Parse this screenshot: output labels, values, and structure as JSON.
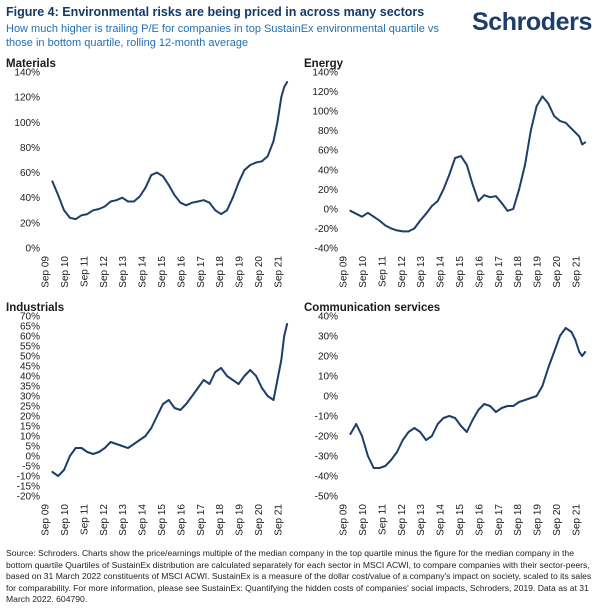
{
  "header": {
    "title": "Figure 4: Environmental risks are being priced in across many sectors",
    "subtitle": "How much higher is trailing P/E for companies in top SustainEx environmental quartile vs those in bottom quartile, rolling 12-month average",
    "logo": "Schroders"
  },
  "footnote": "Source: Schroders. Charts show the price/earnings multiple of the median company in the top quartile minus the figure for the median company in the bottom quartile Quartiles of SustainEx distribution are calculated separately for each sector in MSCI ACWI, to compare companies with their sector-peers, based on 31 March 2022 constituents of MSCI ACWI. SustainEx is a measure of the dollar cost/value of a company's impact on society, scaled to its sales for comparability. For more information, please see SustainEx: Quantifying the hidden costs of companies' social impacts, Schroders, 2019. Data as at 31 March 2022. 604790.",
  "colors": {
    "line": "#1e3e6a",
    "title": "#133a64",
    "subtitle": "#1f6fb5"
  },
  "chart_data": [
    {
      "type": "line",
      "title": "Materials",
      "x_tick_labels": [
        "Sep 09",
        "Sep 10",
        "Sep 11",
        "Sep 12",
        "Sep 13",
        "Sep 14",
        "Sep 15",
        "Sep 16",
        "Sep 17",
        "Sep 18",
        "Sep 19",
        "Sep 20",
        "Sep 21"
      ],
      "x_range": [
        2009.67,
        2022.25
      ],
      "y_ticks": [
        0,
        20,
        40,
        60,
        80,
        100,
        120,
        140
      ],
      "y_tick_labels": [
        "0%",
        "20%",
        "40%",
        "60%",
        "80%",
        "100%",
        "120%",
        "140%"
      ],
      "ylim": [
        0,
        140
      ],
      "x": [
        2010.0,
        2010.3,
        2010.6,
        2010.9,
        2011.2,
        2011.5,
        2011.8,
        2012.1,
        2012.4,
        2012.7,
        2013.0,
        2013.3,
        2013.6,
        2013.9,
        2014.2,
        2014.5,
        2014.8,
        2015.1,
        2015.4,
        2015.7,
        2016.0,
        2016.3,
        2016.6,
        2016.9,
        2017.2,
        2017.5,
        2017.8,
        2018.1,
        2018.4,
        2018.7,
        2019.0,
        2019.3,
        2019.6,
        2019.9,
        2020.2,
        2020.5,
        2020.8,
        2021.1,
        2021.4,
        2021.6,
        2021.8,
        2021.95,
        2022.1
      ],
      "values": [
        53,
        42,
        30,
        24,
        23,
        26,
        27,
        30,
        31,
        33,
        37,
        38,
        40,
        37,
        37,
        41,
        48,
        58,
        60,
        57,
        50,
        42,
        36,
        34,
        36,
        37,
        38,
        36,
        30,
        27,
        30,
        40,
        52,
        62,
        66,
        68,
        69,
        73,
        85,
        100,
        120,
        128,
        132
      ]
    },
    {
      "type": "line",
      "title": "Energy",
      "x_tick_labels": [
        "Sep 09",
        "Sep 10",
        "Sep 11",
        "Sep 12",
        "Sep 13",
        "Sep 14",
        "Sep 15",
        "Sep 16",
        "Sep 17",
        "Sep 18",
        "Sep 19",
        "Sep 20",
        "Sep 21"
      ],
      "x_range": [
        2009.67,
        2022.25
      ],
      "y_ticks": [
        -40,
        -20,
        0,
        20,
        40,
        60,
        80,
        100,
        120,
        140
      ],
      "y_tick_labels": [
        "-40%",
        "-20%",
        "0%",
        "20%",
        "40%",
        "60%",
        "80%",
        "100%",
        "120%",
        "140%"
      ],
      "ylim": [
        -40,
        140
      ],
      "x": [
        2010.0,
        2010.3,
        2010.6,
        2010.9,
        2011.2,
        2011.5,
        2011.8,
        2012.1,
        2012.4,
        2012.7,
        2013.0,
        2013.3,
        2013.6,
        2013.9,
        2014.2,
        2014.5,
        2014.8,
        2015.1,
        2015.4,
        2015.7,
        2016.0,
        2016.3,
        2016.6,
        2016.9,
        2017.2,
        2017.5,
        2017.8,
        2018.1,
        2018.4,
        2018.7,
        2019.0,
        2019.3,
        2019.6,
        2019.9,
        2020.2,
        2020.5,
        2020.8,
        2021.1,
        2021.4,
        2021.6,
        2021.8,
        2021.95,
        2022.1
      ],
      "values": [
        -2,
        -5,
        -8,
        -4,
        -8,
        -12,
        -17,
        -20,
        -22,
        -23,
        -23,
        -20,
        -12,
        -5,
        3,
        8,
        20,
        35,
        52,
        54,
        45,
        25,
        8,
        14,
        12,
        13,
        6,
        -2,
        0,
        20,
        45,
        80,
        105,
        115,
        108,
        95,
        90,
        88,
        82,
        78,
        74,
        66,
        68
      ]
    },
    {
      "type": "line",
      "title": "Industrials",
      "x_tick_labels": [
        "Sep 09",
        "Sep 10",
        "Sep 11",
        "Sep 12",
        "Sep 13",
        "Sep 14",
        "Sep 15",
        "Sep 16",
        "Sep 17",
        "Sep 18",
        "Sep 19",
        "Sep 20",
        "Sep 21"
      ],
      "x_range": [
        2009.67,
        2022.25
      ],
      "y_ticks": [
        -20,
        -15,
        -10,
        -5,
        0,
        5,
        10,
        15,
        20,
        25,
        30,
        35,
        40,
        45,
        50,
        55,
        60,
        65,
        70
      ],
      "y_tick_labels": [
        "-20%",
        "-15%",
        "-10%",
        "-5%",
        "0%",
        "5%",
        "10%",
        "15%",
        "20%",
        "25%",
        "30%",
        "35%",
        "40%",
        "45%",
        "50%",
        "55%",
        "60%",
        "65%",
        "70%"
      ],
      "ylim": [
        -20,
        70
      ],
      "x": [
        2010.0,
        2010.3,
        2010.6,
        2010.9,
        2011.2,
        2011.5,
        2011.8,
        2012.1,
        2012.4,
        2012.7,
        2013.0,
        2013.3,
        2013.6,
        2013.9,
        2014.2,
        2014.5,
        2014.8,
        2015.1,
        2015.4,
        2015.7,
        2016.0,
        2016.3,
        2016.6,
        2016.9,
        2017.2,
        2017.5,
        2017.8,
        2018.1,
        2018.4,
        2018.7,
        2019.0,
        2019.3,
        2019.6,
        2019.9,
        2020.2,
        2020.5,
        2020.8,
        2021.1,
        2021.4,
        2021.6,
        2021.8,
        2021.95,
        2022.1
      ],
      "values": [
        -8,
        -10,
        -7,
        0,
        4,
        4,
        2,
        1,
        2,
        4,
        7,
        6,
        5,
        4,
        6,
        8,
        10,
        14,
        20,
        26,
        28,
        24,
        23,
        26,
        30,
        34,
        38,
        36,
        42,
        44,
        40,
        38,
        36,
        40,
        43,
        40,
        34,
        30,
        28,
        38,
        48,
        60,
        66
      ]
    },
    {
      "type": "line",
      "title": "Communication services",
      "x_tick_labels": [
        "Sep 09",
        "Sep 10",
        "Sep 11",
        "Sep 12",
        "Sep 13",
        "Sep 14",
        "Sep 15",
        "Sep 16",
        "Sep 17",
        "Sep 18",
        "Sep 19",
        "Sep 20",
        "Sep 21"
      ],
      "x_range": [
        2009.67,
        2022.25
      ],
      "y_ticks": [
        -50,
        -40,
        -30,
        -20,
        -10,
        0,
        10,
        20,
        30,
        40
      ],
      "y_tick_labels": [
        "-50%",
        "-40%",
        "-30%",
        "-20%",
        "-10%",
        "0%",
        "10%",
        "20%",
        "30%",
        "40%"
      ],
      "ylim": [
        -50,
        40
      ],
      "x": [
        2010.0,
        2010.3,
        2010.6,
        2010.9,
        2011.2,
        2011.5,
        2011.8,
        2012.1,
        2012.4,
        2012.7,
        2013.0,
        2013.3,
        2013.6,
        2013.9,
        2014.2,
        2014.5,
        2014.8,
        2015.1,
        2015.4,
        2015.7,
        2016.0,
        2016.3,
        2016.6,
        2016.9,
        2017.2,
        2017.5,
        2017.8,
        2018.1,
        2018.4,
        2018.7,
        2019.0,
        2019.3,
        2019.6,
        2019.9,
        2020.2,
        2020.5,
        2020.8,
        2021.1,
        2021.4,
        2021.6,
        2021.8,
        2021.95,
        2022.1
      ],
      "values": [
        -19,
        -14,
        -20,
        -30,
        -36,
        -36,
        -35,
        -32,
        -28,
        -22,
        -18,
        -16,
        -18,
        -22,
        -20,
        -14,
        -11,
        -10,
        -11,
        -15,
        -18,
        -12,
        -7,
        -4,
        -5,
        -8,
        -6,
        -5,
        -5,
        -3,
        -2,
        -1,
        0,
        5,
        14,
        22,
        30,
        34,
        32,
        28,
        22,
        20,
        22
      ]
    }
  ]
}
